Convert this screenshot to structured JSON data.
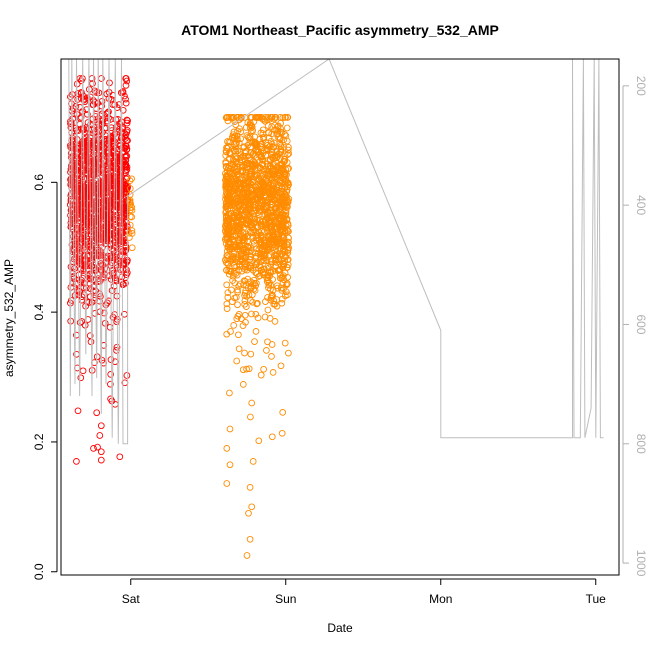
{
  "chart_data": {
    "type": "scatter",
    "title": "ATOM1 Northeast_Pacific asymmetry_532_AMP",
    "xlabel": "Date",
    "ylabel": "asymmetry_532_AMP",
    "x_ticks": [
      "Sat",
      "Sun",
      "Mon",
      "Tue"
    ],
    "y_ticks": [
      "0.0",
      "0.2",
      "0.4",
      "0.6"
    ],
    "y2_ticks": [
      "200",
      "400",
      "600",
      "800",
      "1000"
    ],
    "xlim_days": [
      -0.45,
      3.15
    ],
    "ylim": [
      -0.005,
      0.79
    ],
    "y2lim": [
      1020,
      155
    ],
    "grid": false,
    "legend": "none",
    "colors": {
      "series_day1": "#ff0000",
      "series_day4": "#ff8c00",
      "depth_line": "#bebebe",
      "axes": "#000000",
      "right_axis": "#b0b0b0"
    },
    "series": [
      {
        "color_key": "series_day1",
        "clusters": [
          {
            "x_range": [
              -0.39,
              -0.02
            ],
            "y_mean": 0.58,
            "y_sd": 0.075,
            "y_min": 0.17,
            "y_max": 0.76,
            "n": 1400
          }
        ],
        "explicit_points": [
          {
            "x": -0.34,
            "y": 0.248
          },
          {
            "x": -0.24,
            "y": 0.19
          },
          {
            "x": -0.19,
            "y": 0.172
          },
          {
            "x": -0.19,
            "y": 0.185
          },
          {
            "x": -0.2,
            "y": 0.21
          },
          {
            "x": -0.19,
            "y": 0.225
          },
          {
            "x": -0.35,
            "y": 0.335
          },
          {
            "x": -0.22,
            "y": 0.245
          },
          {
            "x": -0.05,
            "y": 0.74
          }
        ]
      },
      {
        "color_key": "series_day4",
        "clusters": [
          {
            "x_range": [
              -0.01,
              0.01
            ],
            "y_mean": 0.55,
            "y_sd": 0.035,
            "y_min": 0.49,
            "y_max": 0.61,
            "n": 20
          },
          {
            "x_range": [
              0.61,
              1.02
            ],
            "y_mean": 0.565,
            "y_sd": 0.07,
            "y_min": 0.02,
            "y_max": 0.7,
            "n": 1500
          }
        ],
        "explicit_points": [
          {
            "x": 0.62,
            "y": 0.136
          },
          {
            "x": 0.75,
            "y": 0.025
          },
          {
            "x": 0.77,
            "y": 0.05
          },
          {
            "x": 0.76,
            "y": 0.09
          },
          {
            "x": 0.78,
            "y": 0.1
          },
          {
            "x": 0.77,
            "y": 0.13
          },
          {
            "x": 0.79,
            "y": 0.17
          },
          {
            "x": 0.64,
            "y": 0.165
          },
          {
            "x": 0.62,
            "y": 0.19
          },
          {
            "x": 0.64,
            "y": 0.22
          }
        ]
      }
    ],
    "depth_line": {
      "color_key": "depth_line",
      "points": [
        [
          -0.44,
          155
        ],
        [
          -0.4,
          155
        ],
        [
          -0.39,
          720
        ],
        [
          -0.38,
          155
        ],
        [
          -0.36,
          700
        ],
        [
          -0.35,
          155
        ],
        [
          -0.33,
          720
        ],
        [
          -0.31,
          155
        ],
        [
          -0.29,
          650
        ],
        [
          -0.27,
          155
        ],
        [
          -0.25,
          720
        ],
        [
          -0.24,
          155
        ],
        [
          -0.22,
          690
        ],
        [
          -0.21,
          155
        ],
        [
          -0.19,
          750
        ],
        [
          -0.18,
          155
        ],
        [
          -0.16,
          700
        ],
        [
          -0.14,
          155
        ],
        [
          -0.12,
          790
        ],
        [
          -0.1,
          155
        ],
        [
          -0.08,
          800
        ],
        [
          -0.06,
          155
        ],
        [
          -0.05,
          800
        ],
        [
          -0.02,
          800
        ],
        [
          -0.02,
          385
        ],
        [
          1.28,
          155
        ],
        [
          2.0,
          610
        ],
        [
          2.0,
          790
        ],
        [
          2.85,
          790
        ],
        [
          2.85,
          155
        ],
        [
          2.86,
          790
        ],
        [
          2.9,
          790
        ],
        [
          2.92,
          155
        ],
        [
          2.93,
          790
        ],
        [
          2.97,
          740
        ],
        [
          2.99,
          155
        ],
        [
          3.0,
          790
        ],
        [
          3.02,
          155
        ],
        [
          3.03,
          790
        ],
        [
          3.05,
          790
        ]
      ]
    }
  }
}
